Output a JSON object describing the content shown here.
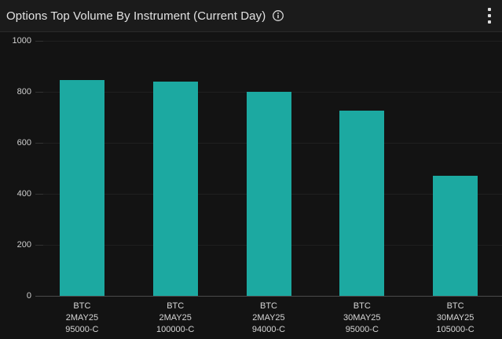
{
  "header": {
    "title": "Options Top Volume By Instrument (Current Day)",
    "info_icon": "info-circle-icon",
    "menu_icon": "kebab-vertical-icon"
  },
  "colors": {
    "background": "#131313",
    "header_background": "#1B1B1B",
    "divider": "#2A2A2A",
    "bar": "#1CA9A1",
    "gridline": "#1F1F1F",
    "axis_baseline": "#4A4A4A",
    "title_text": "#E3E3E3",
    "tick_text": "#CFCFCF"
  },
  "chart_data": {
    "type": "bar",
    "title": "Options Top Volume By Instrument (Current Day)",
    "categories": [
      [
        "BTC",
        "2MAY25",
        "95000-C"
      ],
      [
        "BTC",
        "2MAY25",
        "100000-C"
      ],
      [
        "BTC",
        "2MAY25",
        "94000-C"
      ],
      [
        "BTC",
        "30MAY25",
        "95000-C"
      ],
      [
        "BTC",
        "30MAY25",
        "105000-C"
      ]
    ],
    "values": [
      845,
      841,
      800,
      725,
      470
    ],
    "xlabel": "",
    "ylabel": "",
    "ylim": [
      0,
      1000
    ],
    "yticks": [
      0,
      200,
      400,
      600,
      800,
      1000
    ],
    "grid": "horizontal",
    "legend": "none",
    "bar_color": "#1CA9A1"
  }
}
